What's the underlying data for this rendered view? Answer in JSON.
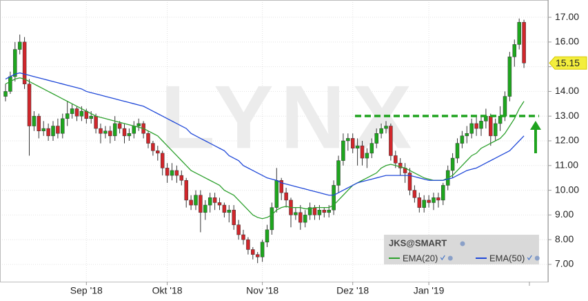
{
  "chart_data": {
    "type": "candlestick",
    "symbol": "JKS@SMART",
    "watermark": "LYNX",
    "categories": [
      null,
      null,
      null,
      null,
      null,
      null,
      null,
      null,
      null,
      null,
      null,
      null,
      null,
      null,
      null,
      null,
      null,
      "Sep '18",
      null,
      null,
      null,
      null,
      null,
      null,
      null,
      null,
      null,
      null,
      null,
      null,
      null,
      null,
      null,
      null,
      "Okt '18",
      null,
      null,
      null,
      null,
      null,
      null,
      null,
      null,
      null,
      null,
      null,
      null,
      null,
      null,
      null,
      null,
      null,
      null,
      null,
      "Nov '18",
      null,
      null,
      null,
      null,
      null,
      null,
      null,
      null,
      null,
      null,
      null,
      null,
      null,
      null,
      null,
      null,
      null,
      null,
      "Dez '18",
      null,
      null,
      null,
      null,
      null,
      null,
      null,
      null,
      null,
      null,
      null,
      null,
      null,
      null,
      null,
      "Jan '19",
      null,
      null,
      null,
      null,
      null,
      null,
      null,
      null,
      null,
      null,
      null,
      null,
      null,
      null,
      null,
      null,
      null,
      null,
      null,
      null
    ],
    "open": [
      13.8,
      14.0,
      14.6,
      15.7,
      16.0,
      14.3,
      12.6,
      13.0,
      12.4,
      12.5,
      12.2,
      12.6,
      12.3,
      12.9,
      13.1,
      13.3,
      13.0,
      13.2,
      12.9,
      13.0,
      12.5,
      12.3,
      12.4,
      12.2,
      12.7,
      12.5,
      12.2,
      12.3,
      12.6,
      12.7,
      12.3,
      11.9,
      11.6,
      11.5,
      10.9,
      10.6,
      10.8,
      10.6,
      10.4,
      9.6,
      9.4,
      9.8,
      9.1,
      9.4,
      9.7,
      9.5,
      9.4,
      9.1,
      9.2,
      8.6,
      8.2,
      8.0,
      7.6,
      7.4,
      7.3,
      7.9,
      8.4,
      9.3,
      10.4,
      9.9,
      9.6,
      9.0,
      9.1,
      8.7,
      9.0,
      9.3,
      9.0,
      9.2,
      9.1,
      9.2,
      10.2,
      11.2,
      12.0,
      12.1,
      11.7,
      11.8,
      11.3,
      11.5,
      11.9,
      12.3,
      12.5,
      12.6,
      11.4,
      11.1,
      10.9,
      10.7,
      10.0,
      9.7,
      9.3,
      9.6,
      9.5,
      9.7,
      9.6,
      10.2,
      10.8,
      11.3,
      11.9,
      12.2,
      12.3,
      12.7,
      12.5,
      12.8,
      13.0,
      12.2,
      12.7,
      13.0,
      13.8,
      15.4,
      15.9,
      16.8
    ],
    "high": [
      14.3,
      14.8,
      16.0,
      16.3,
      16.2,
      14.5,
      13.2,
      13.1,
      12.8,
      12.7,
      12.8,
      12.9,
      13.1,
      13.6,
      13.5,
      13.4,
      13.4,
      13.3,
      13.2,
      13.1,
      12.7,
      12.6,
      12.6,
      13.0,
      12.8,
      12.7,
      12.5,
      12.8,
      12.9,
      12.8,
      12.4,
      12.0,
      11.8,
      11.6,
      11.1,
      11.1,
      11.0,
      10.8,
      10.5,
      9.8,
      10.0,
      10.0,
      9.6,
      9.9,
      9.9,
      9.7,
      9.5,
      9.4,
      9.4,
      8.8,
      8.4,
      8.1,
      7.7,
      7.5,
      8.0,
      8.6,
      9.5,
      10.9,
      10.5,
      10.1,
      9.7,
      9.3,
      9.4,
      9.2,
      9.5,
      9.4,
      9.4,
      9.3,
      9.4,
      10.4,
      11.4,
      12.3,
      12.3,
      12.3,
      12.1,
      12.0,
      11.7,
      12.1,
      12.5,
      12.7,
      12.8,
      12.7,
      11.6,
      11.3,
      11.1,
      10.9,
      10.2,
      9.9,
      9.8,
      9.8,
      9.9,
      9.9,
      10.3,
      11.0,
      11.5,
      12.1,
      12.4,
      12.6,
      12.9,
      13.0,
      13.0,
      13.3,
      13.1,
      12.9,
      13.4,
      14.0,
      15.6,
      16.1,
      16.95,
      16.9
    ],
    "low": [
      13.6,
      13.9,
      14.4,
      15.5,
      14.1,
      11.4,
      12.4,
      12.1,
      12.2,
      12.0,
      12.0,
      12.1,
      12.1,
      12.6,
      12.9,
      12.8,
      12.8,
      12.7,
      12.7,
      12.3,
      11.9,
      12.1,
      11.9,
      12.0,
      12.3,
      11.9,
      12.0,
      12.1,
      12.4,
      12.1,
      11.7,
      11.4,
      11.2,
      10.6,
      10.3,
      10.4,
      10.3,
      10.2,
      9.3,
      9.2,
      9.2,
      8.3,
      8.8,
      9.1,
      9.2,
      9.2,
      8.9,
      8.7,
      8.4,
      8.0,
      7.8,
      7.4,
      7.2,
      7.05,
      7.1,
      7.7,
      8.2,
      9.1,
      9.6,
      9.3,
      8.5,
      8.8,
      8.4,
      8.5,
      8.8,
      8.8,
      8.8,
      8.9,
      8.9,
      9.0,
      9.9,
      11.0,
      11.6,
      11.5,
      11.0,
      11.0,
      10.9,
      11.3,
      11.7,
      12.1,
      12.3,
      11.2,
      10.9,
      10.6,
      10.3,
      9.8,
      9.5,
      9.1,
      9.1,
      9.3,
      9.2,
      9.3,
      9.4,
      10.0,
      10.5,
      11.1,
      11.7,
      11.9,
      12.1,
      12.2,
      12.2,
      12.5,
      11.8,
      12.0,
      12.4,
      12.8,
      13.6,
      15.0,
      15.7,
      14.95
    ],
    "close": [
      14.0,
      14.6,
      15.7,
      16.0,
      14.3,
      12.6,
      13.0,
      12.4,
      12.5,
      12.2,
      12.6,
      12.3,
      12.9,
      13.1,
      13.3,
      13.0,
      13.2,
      12.9,
      13.0,
      12.5,
      12.3,
      12.4,
      12.2,
      12.7,
      12.5,
      12.2,
      12.3,
      12.6,
      12.7,
      12.3,
      11.9,
      11.6,
      11.5,
      10.9,
      10.6,
      10.8,
      10.6,
      10.4,
      9.6,
      9.4,
      9.8,
      9.1,
      9.4,
      9.7,
      9.5,
      9.4,
      9.1,
      9.2,
      8.6,
      8.2,
      8.0,
      7.6,
      7.4,
      7.3,
      7.9,
      8.4,
      9.3,
      10.4,
      9.9,
      9.6,
      9.0,
      9.1,
      8.7,
      9.0,
      9.3,
      9.0,
      9.2,
      9.1,
      9.2,
      10.2,
      11.2,
      12.0,
      12.1,
      11.7,
      11.8,
      11.3,
      11.5,
      11.9,
      12.3,
      12.5,
      12.6,
      11.4,
      11.1,
      10.9,
      10.7,
      10.0,
      9.7,
      9.3,
      9.6,
      9.5,
      9.7,
      9.6,
      10.2,
      10.8,
      11.3,
      11.9,
      12.2,
      12.3,
      12.7,
      12.5,
      12.8,
      13.0,
      12.2,
      12.7,
      13.0,
      13.8,
      15.4,
      15.9,
      16.8,
      15.15
    ],
    "up_color": "#1ea61e",
    "down_color": "#d0262b",
    "series": [
      {
        "name": "EMA(20)",
        "color": "#2ca02c",
        "values": [
          14.3,
          14.4,
          14.5,
          14.55,
          14.5,
          14.4,
          14.3,
          14.2,
          14.1,
          14.0,
          13.9,
          13.8,
          13.7,
          13.6,
          13.5,
          13.4,
          13.3,
          13.2,
          13.1,
          13.0,
          12.95,
          12.9,
          12.85,
          12.8,
          12.75,
          12.7,
          12.65,
          12.6,
          12.55,
          12.5,
          12.4,
          12.3,
          12.2,
          12.0,
          11.8,
          11.6,
          11.4,
          11.2,
          11.0,
          10.8,
          10.7,
          10.6,
          10.5,
          10.4,
          10.3,
          10.2,
          10.0,
          9.9,
          9.8,
          9.6,
          9.4,
          9.2,
          9.0,
          8.9,
          8.85,
          8.9,
          9.0,
          9.2,
          9.3,
          9.35,
          9.3,
          9.3,
          9.3,
          9.25,
          9.25,
          9.3,
          9.3,
          9.3,
          9.3,
          9.4,
          9.6,
          9.8,
          10.0,
          10.2,
          10.3,
          10.4,
          10.5,
          10.6,
          10.7,
          10.9,
          11.0,
          11.05,
          11.0,
          10.95,
          10.9,
          10.8,
          10.7,
          10.6,
          10.5,
          10.45,
          10.4,
          10.4,
          10.4,
          10.5,
          10.6,
          10.8,
          11.0,
          11.2,
          11.4,
          11.5,
          11.7,
          11.8,
          11.9,
          12.0,
          12.1,
          12.3,
          12.6,
          12.9,
          13.3,
          13.6
        ]
      },
      {
        "name": "EMA(50)",
        "color": "#1f48d8",
        "values": [
          14.5,
          14.6,
          14.7,
          14.75,
          14.7,
          14.65,
          14.6,
          14.55,
          14.5,
          14.45,
          14.4,
          14.35,
          14.3,
          14.25,
          14.2,
          14.15,
          14.1,
          14.0,
          13.95,
          13.9,
          13.85,
          13.8,
          13.75,
          13.7,
          13.65,
          13.6,
          13.55,
          13.5,
          13.45,
          13.4,
          13.3,
          13.2,
          13.1,
          13.0,
          12.9,
          12.8,
          12.7,
          12.6,
          12.5,
          12.3,
          12.2,
          12.1,
          12.0,
          11.9,
          11.8,
          11.7,
          11.6,
          11.4,
          11.3,
          11.2,
          11.0,
          10.9,
          10.8,
          10.7,
          10.6,
          10.5,
          10.45,
          10.4,
          10.3,
          10.25,
          10.2,
          10.15,
          10.1,
          10.05,
          10.0,
          9.95,
          9.9,
          9.85,
          9.8,
          9.8,
          9.9,
          10.0,
          10.1,
          10.2,
          10.3,
          10.35,
          10.4,
          10.45,
          10.5,
          10.55,
          10.6,
          10.6,
          10.6,
          10.6,
          10.6,
          10.6,
          10.55,
          10.5,
          10.45,
          10.4,
          10.4,
          10.4,
          10.4,
          10.45,
          10.5,
          10.6,
          10.7,
          10.8,
          10.85,
          10.9,
          11.0,
          11.1,
          11.2,
          11.3,
          11.4,
          11.5,
          11.6,
          11.8,
          12.0,
          12.2
        ]
      }
    ],
    "ylim": [
      6.3,
      17.7
    ],
    "yticks": [
      {
        "value": 7,
        "label": "7.00"
      },
      {
        "value": 8,
        "label": "8.00"
      },
      {
        "value": 9,
        "label": "9.00"
      },
      {
        "value": 10,
        "label": "10.00"
      },
      {
        "value": 11,
        "label": "11.00"
      },
      {
        "value": 12,
        "label": "12.00"
      },
      {
        "value": 13,
        "label": "13.00"
      },
      {
        "value": 14,
        "label": "14.00"
      },
      {
        "value": 15,
        "label": "15.00"
      },
      {
        "value": 16,
        "label": "16.00"
      },
      {
        "value": 17,
        "label": "17.00"
      }
    ],
    "grid": true
  }
}
